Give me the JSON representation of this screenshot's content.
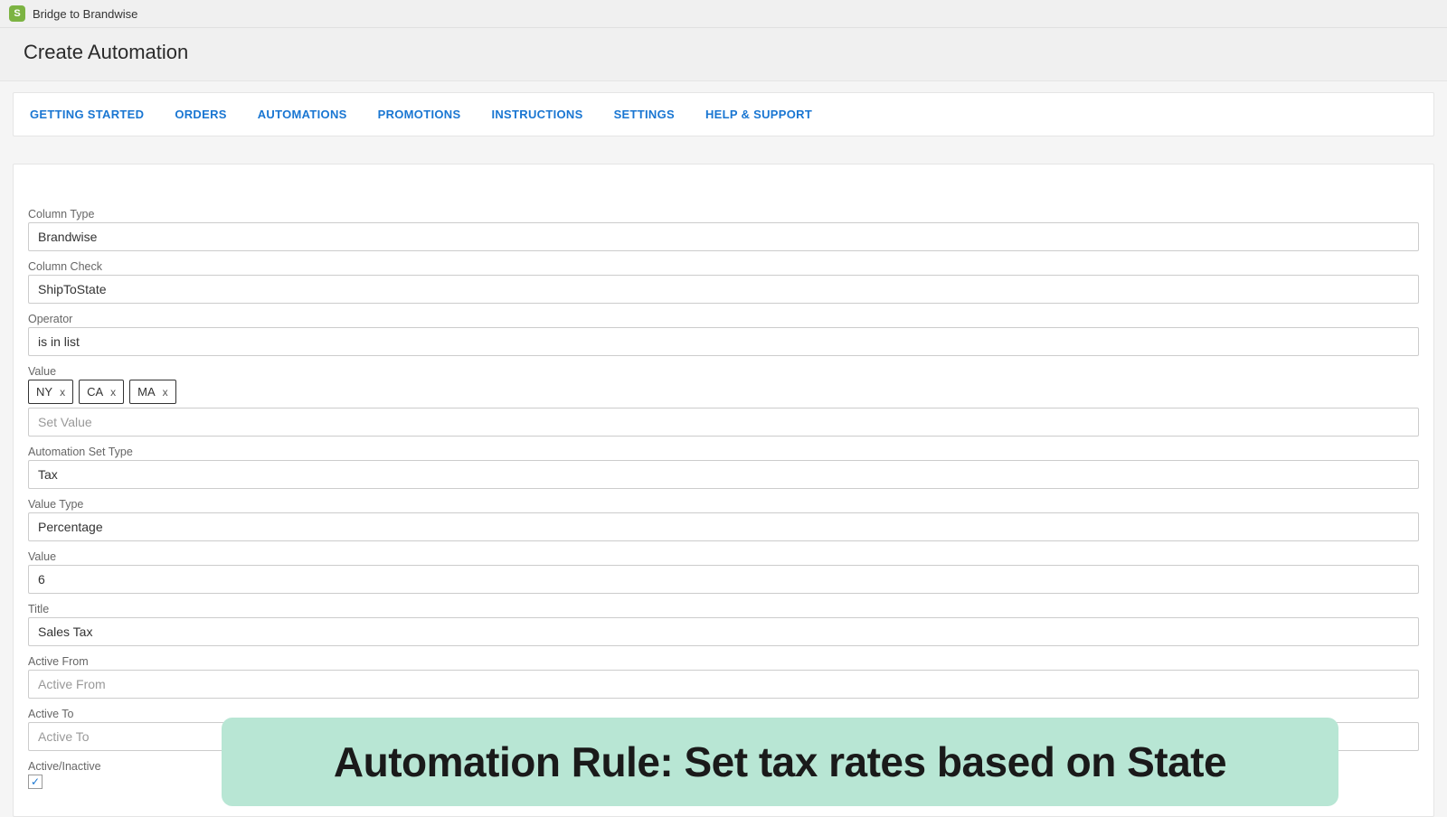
{
  "app": {
    "name": "Bridge to Brandwise",
    "icon_bg": "#7cb342",
    "icon_glyph": "S"
  },
  "page": {
    "title": "Create Automation"
  },
  "nav": {
    "tabs": [
      "GETTING STARTED",
      "ORDERS",
      "AUTOMATIONS",
      "PROMOTIONS",
      "INSTRUCTIONS",
      "SETTINGS",
      "HELP & SUPPORT"
    ],
    "color": "#1976d2"
  },
  "form": {
    "column_type": {
      "label": "Column Type",
      "value": "Brandwise"
    },
    "column_check": {
      "label": "Column Check",
      "value": "ShipToState"
    },
    "operator": {
      "label": "Operator",
      "value": "is in list"
    },
    "value_tags": {
      "label": "Value",
      "tags": [
        "NY",
        "CA",
        "MA"
      ],
      "placeholder": "Set Value"
    },
    "automation_set_type": {
      "label": "Automation Set Type",
      "value": "Tax"
    },
    "value_type": {
      "label": "Value Type",
      "value": "Percentage"
    },
    "value_num": {
      "label": "Value",
      "value": "6"
    },
    "title": {
      "label": "Title",
      "value": "Sales Tax"
    },
    "active_from": {
      "label": "Active From",
      "value": "",
      "placeholder": "Active From"
    },
    "active_to": {
      "label": "Active To",
      "value": "",
      "placeholder": "Active To"
    },
    "active_inactive": {
      "label": "Active/Inactive",
      "checked": true
    }
  },
  "banner": {
    "text": "Automation Rule: Set tax rates based on State",
    "bg": "#b8e6d4",
    "text_color": "#1a1a1a"
  },
  "colors": {
    "page_bg": "#f5f5f5",
    "card_bg": "#ffffff",
    "border": "#e5e5e5",
    "input_border": "#cccccc",
    "label": "#666666"
  }
}
